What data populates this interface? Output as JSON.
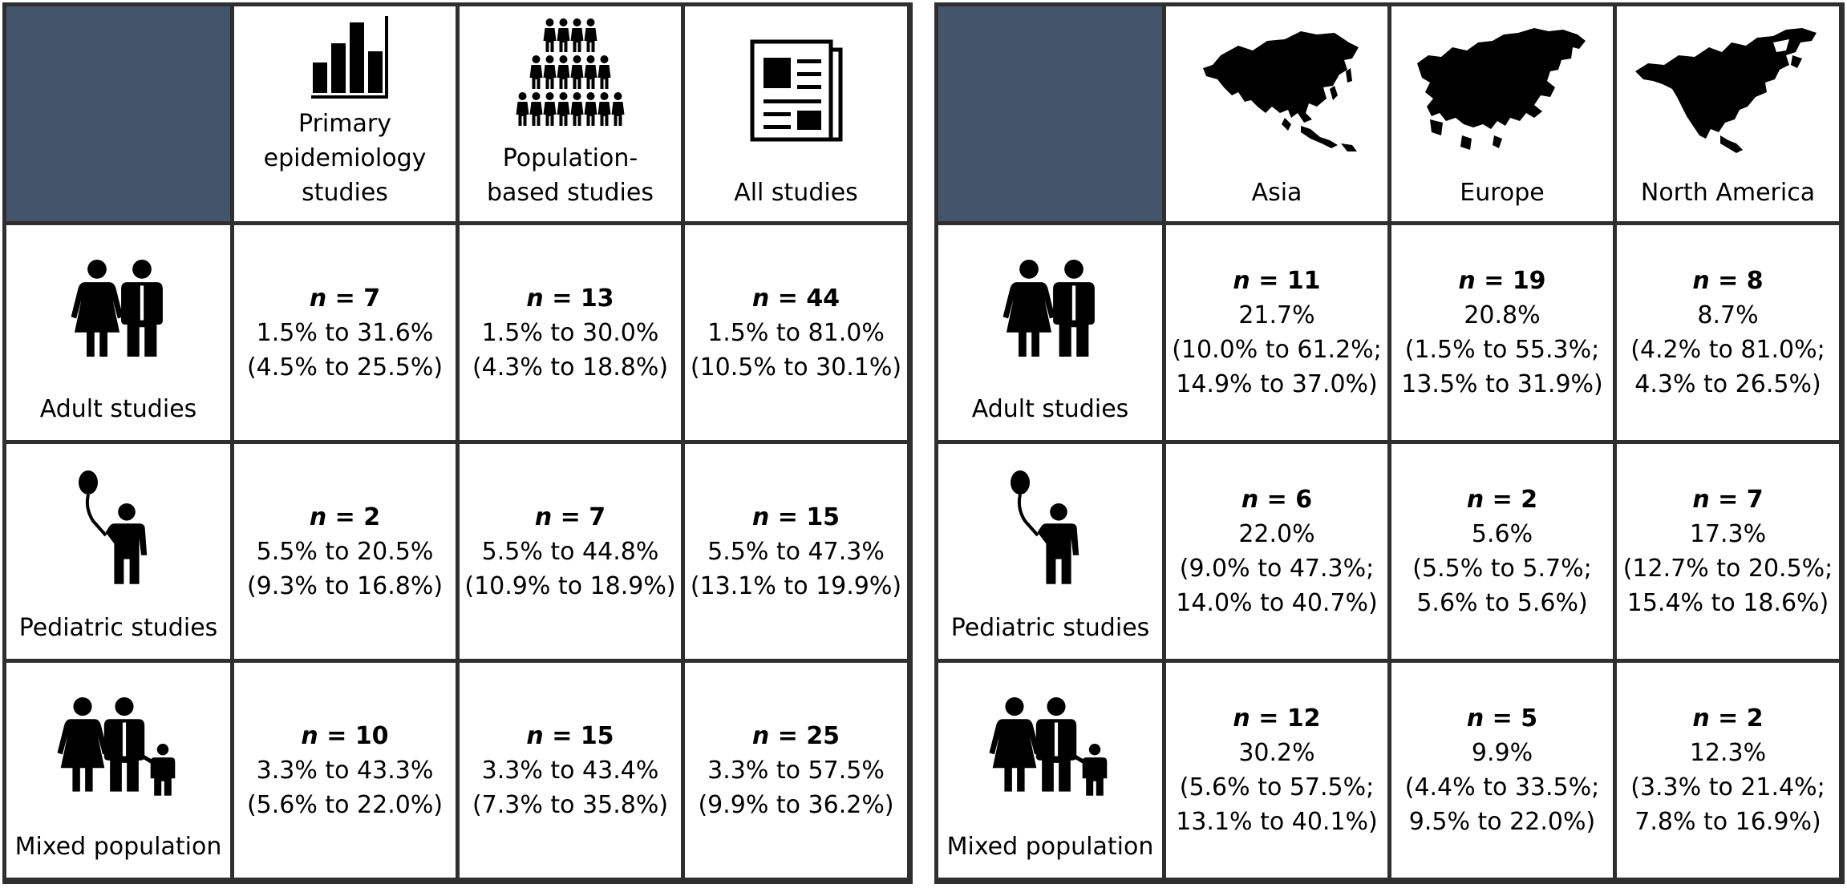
{
  "left_table": {
    "columns": [
      {
        "icon": "bar-chart-icon",
        "label": "Primary epidemiology studies"
      },
      {
        "icon": "population-crowd-icon",
        "label": "Population-based studies"
      },
      {
        "icon": "newspaper-icon",
        "label": "All studies"
      }
    ],
    "rows": [
      {
        "icon": "adult-couple-icon",
        "label": "Adult studies",
        "cells": [
          {
            "n": "7",
            "range": "1.5% to 31.6%",
            "ci": "(4.5% to 25.5%)"
          },
          {
            "n": "13",
            "range": "1.5% to 30.0%",
            "ci": "(4.3% to 18.8%)"
          },
          {
            "n": "44",
            "range": "1.5% to 81.0%",
            "ci": "(10.5% to 30.1%)"
          }
        ]
      },
      {
        "icon": "child-with-balloon-icon",
        "label": "Pediatric studies",
        "cells": [
          {
            "n": "2",
            "range": "5.5% to 20.5%",
            "ci": "(9.3% to 16.8%)"
          },
          {
            "n": "7",
            "range": "5.5% to 44.8%",
            "ci": "(10.9% to 18.9%)"
          },
          {
            "n": "15",
            "range": "5.5% to 47.3%",
            "ci": "(13.1% to 19.9%)"
          }
        ]
      },
      {
        "icon": "family-icon",
        "label": "Mixed population",
        "cells": [
          {
            "n": "10",
            "range": "3.3% to 43.3%",
            "ci": "(5.6% to 22.0%)"
          },
          {
            "n": "15",
            "range": "3.3% to 43.4%",
            "ci": "(7.3% to 35.8%)"
          },
          {
            "n": "25",
            "range": "3.3% to 57.5%",
            "ci": "(9.9% to 36.2%)"
          }
        ]
      }
    ]
  },
  "right_table": {
    "columns": [
      {
        "icon": "asia-map-icon",
        "label": "Asia"
      },
      {
        "icon": "europe-map-icon",
        "label": "Europe"
      },
      {
        "icon": "north-america-map-icon",
        "label": "North America"
      }
    ],
    "rows": [
      {
        "icon": "adult-couple-icon",
        "label": "Adult studies",
        "cells": [
          {
            "n": "11",
            "value": "21.7%",
            "line1": "(10.0% to 61.2%;",
            "line2": "14.9% to 37.0%)"
          },
          {
            "n": "19",
            "value": "20.8%",
            "line1": "(1.5% to 55.3%;",
            "line2": "13.5% to 31.9%)"
          },
          {
            "n": "8",
            "value": "8.7%",
            "line1": "(4.2% to 81.0%;",
            "line2": "4.3% to 26.5%)"
          }
        ]
      },
      {
        "icon": "child-with-balloon-icon",
        "label": "Pediatric studies",
        "cells": [
          {
            "n": "6",
            "value": "22.0%",
            "line1": "(9.0% to 47.3%;",
            "line2": "14.0% to 40.7%)"
          },
          {
            "n": "2",
            "value": "5.6%",
            "line1": "(5.5% to 5.7%;",
            "line2": "5.6% to 5.6%)"
          },
          {
            "n": "7",
            "value": "17.3%",
            "line1": "(12.7% to 20.5%;",
            "line2": "15.4% to 18.6%)"
          }
        ]
      },
      {
        "icon": "family-icon",
        "label": "Mixed population",
        "cells": [
          {
            "n": "12",
            "value": "30.2%",
            "line1": "(5.6% to 57.5%;",
            "line2": "13.1% to 40.1%)"
          },
          {
            "n": "5",
            "value": "9.9%",
            "line1": "(4.4% to 33.5%;",
            "line2": "9.5% to 22.0%)"
          },
          {
            "n": "2",
            "value": "12.3%",
            "line1": "(3.3% to 21.4%;",
            "line2": "7.8% to 16.9%)"
          }
        ]
      }
    ]
  },
  "n_symbol": "n",
  "equals": " = ",
  "colors": {
    "corner": "#44546a",
    "border": "#2f2f2f",
    "icon": "#000000"
  }
}
